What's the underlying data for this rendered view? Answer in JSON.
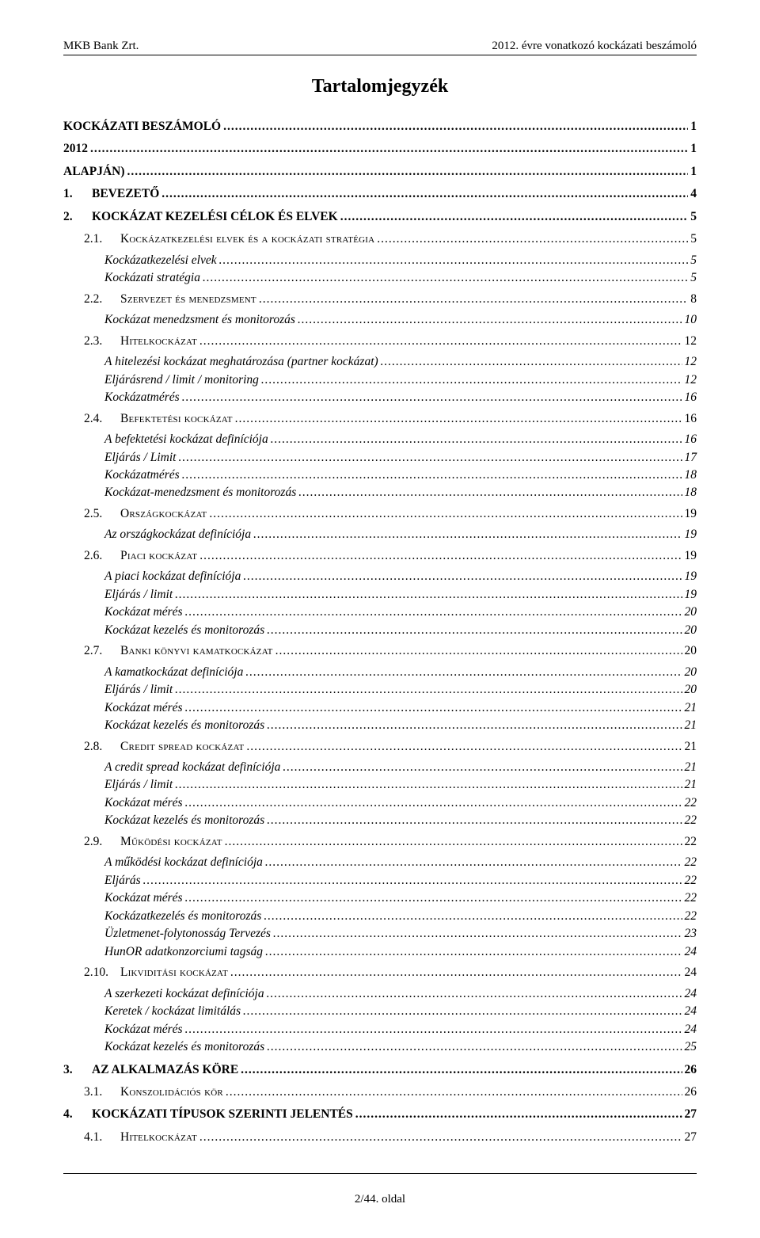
{
  "header": {
    "left": "MKB Bank Zrt.",
    "right": "2012. évre vonatkozó kockázati beszámoló"
  },
  "title": "Tartalomjegyzék",
  "toc": [
    {
      "level": 0,
      "label": "KOCKÁZATI BESZÁMOLÓ",
      "page": "1"
    },
    {
      "level": 0,
      "label": "2012",
      "page": "1"
    },
    {
      "level": 0,
      "label": "ALAPJÁN)",
      "page": "1"
    },
    {
      "level": 0,
      "num": "1.",
      "label": "BEVEZETŐ",
      "page": "4"
    },
    {
      "level": 0,
      "num": "2.",
      "label": "KOCKÁZAT KEZELÉSI CÉLOK ÉS ELVEK",
      "page": "5"
    },
    {
      "level": 1,
      "num": "2.1.",
      "sc": true,
      "label": "Kockázatkezelési elvek és a kockázati stratégia",
      "page": "5"
    },
    {
      "level": 2,
      "label": "Kockázatkezelési elvek",
      "page": "5"
    },
    {
      "level": 2,
      "label": "Kockázati stratégia",
      "page": "5"
    },
    {
      "level": 1,
      "num": "2.2.",
      "sc": true,
      "label": "Szervezet és menedzsment",
      "page": "8"
    },
    {
      "level": 2,
      "label": "Kockázat menedzsment és monitorozás",
      "page": "10"
    },
    {
      "level": 1,
      "num": "2.3.",
      "sc": true,
      "label": "Hitelkockázat",
      "page": "12"
    },
    {
      "level": 2,
      "label": "A hitelezési kockázat meghatározása (partner kockázat)",
      "page": "12"
    },
    {
      "level": 2,
      "label": "Eljárásrend / limit / monitoring",
      "page": "12"
    },
    {
      "level": 2,
      "label": "Kockázatmérés",
      "page": "16"
    },
    {
      "level": 1,
      "num": "2.4.",
      "sc": true,
      "label": "Befektetési kockázat",
      "page": "16"
    },
    {
      "level": 2,
      "label": "A befektetési kockázat definíciója",
      "page": "16"
    },
    {
      "level": 2,
      "label": "Eljárás / Limit",
      "page": "17"
    },
    {
      "level": 2,
      "label": "Kockázatmérés",
      "page": "18"
    },
    {
      "level": 2,
      "label": "Kockázat-menedzsment és monitorozás",
      "page": "18"
    },
    {
      "level": 1,
      "num": "2.5.",
      "sc": true,
      "label": "Országkockázat",
      "page": "19"
    },
    {
      "level": 2,
      "label": "Az országkockázat definíciója",
      "page": "19"
    },
    {
      "level": 1,
      "num": "2.6.",
      "sc": true,
      "label": "Piaci kockázat",
      "page": "19"
    },
    {
      "level": 2,
      "label": "A piaci kockázat definíciója",
      "page": "19"
    },
    {
      "level": 2,
      "label": "Eljárás / limit",
      "page": "19"
    },
    {
      "level": 2,
      "label": "Kockázat mérés",
      "page": "20"
    },
    {
      "level": 2,
      "label": "Kockázat kezelés és monitorozás",
      "page": "20"
    },
    {
      "level": 1,
      "num": "2.7.",
      "sc": true,
      "label": "Banki könyvi kamatkockázat",
      "page": "20"
    },
    {
      "level": 2,
      "label": "A kamatkockázat definíciója",
      "page": "20"
    },
    {
      "level": 2,
      "label": "Eljárás / limit",
      "page": "20"
    },
    {
      "level": 2,
      "label": "Kockázat mérés",
      "page": "21"
    },
    {
      "level": 2,
      "label": "Kockázat kezelés és monitorozás",
      "page": "21"
    },
    {
      "level": 1,
      "num": "2.8.",
      "sc": true,
      "label": "Credit spread kockázat",
      "page": "21"
    },
    {
      "level": 2,
      "label": "A credit spread kockázat definíciója",
      "page": "21"
    },
    {
      "level": 2,
      "label": "Eljárás / limit",
      "page": "21"
    },
    {
      "level": 2,
      "label": "Kockázat mérés",
      "page": "22"
    },
    {
      "level": 2,
      "label": "Kockázat kezelés és monitorozás",
      "page": "22"
    },
    {
      "level": 1,
      "num": "2.9.",
      "sc": true,
      "label": "Működési kockázat",
      "page": "22"
    },
    {
      "level": 2,
      "label": "A működési kockázat definíciója",
      "page": "22"
    },
    {
      "level": 2,
      "label": "Eljárás",
      "page": "22"
    },
    {
      "level": 2,
      "label": "Kockázat mérés",
      "page": "22"
    },
    {
      "level": 2,
      "label": "Kockázatkezelés és monitorozás",
      "page": "22"
    },
    {
      "level": 2,
      "label": "Üzletmenet-folytonosság Tervezés",
      "page": "23"
    },
    {
      "level": 2,
      "label": "HunOR adatkonzorciumi tagság",
      "page": "24"
    },
    {
      "level": 1,
      "num": "2.10.",
      "sc": true,
      "label": "Likviditási kockázat",
      "page": "24"
    },
    {
      "level": 2,
      "label": "A szerkezeti kockázat definíciója",
      "page": "24"
    },
    {
      "level": 2,
      "label": "Keretek / kockázat limitálás",
      "page": "24"
    },
    {
      "level": 2,
      "label": "Kockázat mérés",
      "page": "24"
    },
    {
      "level": 2,
      "label": "Kockázat kezelés és monitorozás",
      "page": "25"
    },
    {
      "level": 0,
      "num": "3.",
      "label": "AZ ALKALMAZÁS KÖRE",
      "page": "26"
    },
    {
      "level": 1,
      "num": "3.1.",
      "sc": true,
      "label": "Konszolidációs kör",
      "page": "26"
    },
    {
      "level": 0,
      "num": "4.",
      "label": "KOCKÁZATI TÍPUSOK SZERINTI JELENTÉS",
      "page": "27"
    },
    {
      "level": 1,
      "num": "4.1.",
      "sc": true,
      "label": "Hitelkockázat",
      "page": "27"
    }
  ],
  "footer": "2/44. oldal"
}
